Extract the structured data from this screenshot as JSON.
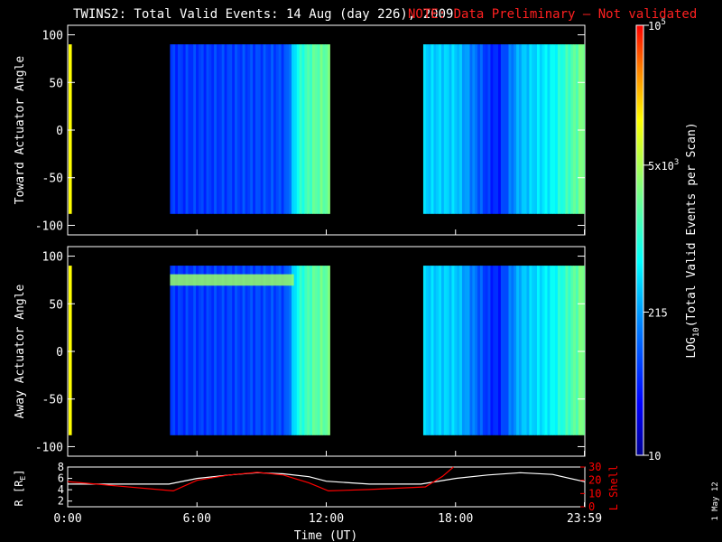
{
  "header": {
    "title": "TWINS2: Total Valid Events: 14 Aug (day 226), 2009",
    "note": "NOTE: Data Preliminary — Not validated",
    "note_color": "#ff2020"
  },
  "side_date": "1 May 12",
  "colorbar": {
    "label_prefix": "LOG",
    "label_sub": "10",
    "label_suffix": "(Total Valid Events per Scan)",
    "tick_labels": [
      "10",
      "215",
      "5x10",
      "10"
    ],
    "tick_superscripts": [
      "",
      "",
      "3",
      "5"
    ],
    "tick_log_values": [
      1.0,
      2.332,
      3.699,
      5.0
    ],
    "range_log": [
      1.0,
      5.0
    ],
    "colormap": [
      "#00008f",
      "#0000ff",
      "#0080ff",
      "#00ffff",
      "#80ff80",
      "#ffff00",
      "#ff8000",
      "#ff0000"
    ]
  },
  "chart_data": [
    {
      "type": "heatmap",
      "name": "toward",
      "ylabel": "Toward Actuator Angle",
      "ylim": [
        -110,
        110
      ],
      "yticks": [
        100,
        50,
        0,
        -50,
        -100
      ],
      "xlim_hours": [
        0,
        24
      ],
      "actuator_range": [
        -88,
        90
      ],
      "data_blocks": [
        {
          "start": "04:45",
          "end": "12:10"
        },
        {
          "start": "16:30",
          "end": "23:59"
        }
      ],
      "edge_strip": {
        "hour": 0.15,
        "color": "#ffff00"
      },
      "time_profile": [
        {
          "t": "04:45",
          "log_events": 1.8
        },
        {
          "t": "10:10",
          "log_events": 1.9
        },
        {
          "t": "10:40",
          "log_events": 2.8
        },
        {
          "t": "11:20",
          "log_events": 3.1
        },
        {
          "t": "12:10",
          "log_events": 3.2
        },
        {
          "t": "16:30",
          "log_events": 2.5
        },
        {
          "t": "18:00",
          "log_events": 2.5
        },
        {
          "t": "19:30",
          "log_events": 1.8
        },
        {
          "t": "20:00",
          "log_events": 1.7
        },
        {
          "t": "21:00",
          "log_events": 2.4
        },
        {
          "t": "22:30",
          "log_events": 2.7
        },
        {
          "t": "23:59",
          "log_events": 3.3
        }
      ]
    },
    {
      "type": "heatmap",
      "name": "away",
      "ylabel": "Away Actuator Angle",
      "ylim": [
        -110,
        110
      ],
      "yticks": [
        100,
        50,
        0,
        -50,
        -100
      ],
      "xlim_hours": [
        0,
        24
      ],
      "actuator_range": [
        -88,
        90
      ],
      "data_blocks": [
        {
          "start": "04:45",
          "end": "12:10"
        },
        {
          "start": "16:30",
          "end": "23:59"
        }
      ],
      "edge_strip": {
        "hour": 0.15,
        "color": "#ffff00"
      },
      "bright_band": {
        "angle_center": 75,
        "angle_width": 12,
        "start": "04:45",
        "end": "10:30",
        "log_events": 3.4
      },
      "time_profile": [
        {
          "t": "04:45",
          "log_events": 1.8
        },
        {
          "t": "10:10",
          "log_events": 1.9
        },
        {
          "t": "10:40",
          "log_events": 2.8
        },
        {
          "t": "11:20",
          "log_events": 3.1
        },
        {
          "t": "12:10",
          "log_events": 3.2
        },
        {
          "t": "16:30",
          "log_events": 2.5
        },
        {
          "t": "18:00",
          "log_events": 2.5
        },
        {
          "t": "19:30",
          "log_events": 1.8
        },
        {
          "t": "20:00",
          "log_events": 1.7
        },
        {
          "t": "21:00",
          "log_events": 2.4
        },
        {
          "t": "22:30",
          "log_events": 2.7
        },
        {
          "t": "23:59",
          "log_events": 3.3
        }
      ]
    },
    {
      "type": "line",
      "name": "orbit",
      "xlabel": "Time (UT)",
      "xticks": [
        "0:00",
        "6:00",
        "12:00",
        "18:00",
        "23:59"
      ],
      "xtick_hours": [
        0,
        6,
        12,
        18,
        23.98
      ],
      "ylabel_left_prefix": "R [R",
      "ylabel_left_sub": "E",
      "ylabel_left_suffix": "]",
      "ylim_left": [
        1,
        8
      ],
      "yticks_left": [
        8,
        6,
        4,
        2
      ],
      "ylabel_right": "L Shell",
      "ylim_right": [
        0,
        30
      ],
      "yticks_right": [
        30,
        20,
        10,
        0
      ],
      "right_axis_color": "#ff0000",
      "series": [
        {
          "name": "R",
          "color": "#ffffff",
          "axis": "left",
          "x": [
            0,
            4.7,
            6,
            7.5,
            8.8,
            10,
            11.2,
            12,
            14,
            16.4,
            18,
            19.5,
            21,
            22.5,
            24
          ],
          "y": [
            5.0,
            5.0,
            6.0,
            6.6,
            7.0,
            6.8,
            6.3,
            5.5,
            5.0,
            5.0,
            6.0,
            6.6,
            7.0,
            6.7,
            5.4
          ]
        },
        {
          "name": "L",
          "color": "#ff0000",
          "axis": "right",
          "x": [
            0,
            4.9,
            6,
            7.5,
            8.8,
            10,
            11.2,
            12.1,
            14,
            16.6,
            17.4,
            17.9
          ],
          "y": [
            19,
            12,
            20,
            24,
            26,
            24,
            18,
            12,
            13,
            15,
            23,
            30
          ]
        }
      ]
    }
  ]
}
